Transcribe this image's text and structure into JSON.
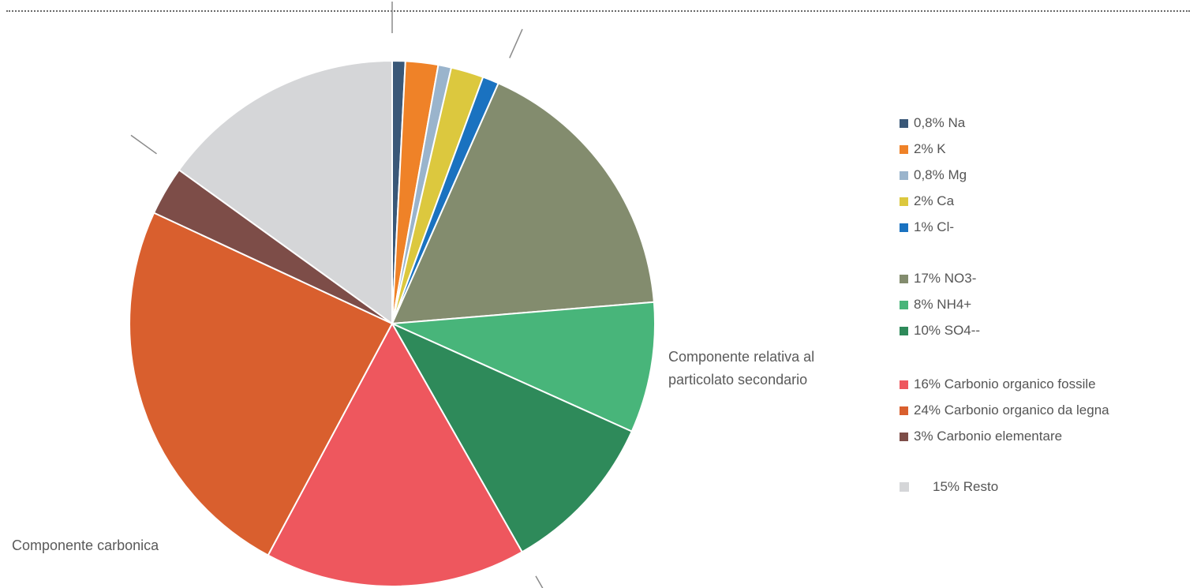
{
  "chart_data": {
    "type": "pie",
    "title": "",
    "unit": "%",
    "slices": [
      {
        "label": "Na",
        "value": 0.8,
        "color": "#3a5878",
        "legend": "0,8% Na"
      },
      {
        "label": "K",
        "value": 2,
        "color": "#ef8228",
        "legend": "2% K"
      },
      {
        "label": "Mg",
        "value": 0.8,
        "color": "#9ab4cc",
        "legend": "0,8% Mg"
      },
      {
        "label": "Ca",
        "value": 2,
        "color": "#dcc83e",
        "legend": "2% Ca"
      },
      {
        "label": "Cl-",
        "value": 1,
        "color": "#1a72c0",
        "legend": "1% Cl-"
      },
      {
        "label": "NO3-",
        "value": 17,
        "color": "#838c6e",
        "legend": "17% NO3-"
      },
      {
        "label": "NH4+",
        "value": 8,
        "color": "#48b57a",
        "legend": "8% NH4+"
      },
      {
        "label": "SO4--",
        "value": 10,
        "color": "#2e8a5a",
        "legend": "10% SO4--"
      },
      {
        "label": "Carbonio organico fossile",
        "value": 16,
        "color": "#ee575e",
        "legend": "16% Carbonio organico fossile"
      },
      {
        "label": "Carbonio organico da legna",
        "value": 24,
        "color": "#d95f2e",
        "legend": "24% Carbonio organico da legna"
      },
      {
        "label": "Carbonio elementare",
        "value": 3,
        "color": "#7d4d48",
        "legend": "3% Carbonio elementare"
      },
      {
        "label": "Resto",
        "value": 15,
        "color": "#d5d6d8",
        "legend": "15% Resto"
      }
    ],
    "groups": [
      {
        "label": "Componente relativa al particolato secondario",
        "members": [
          "NO3-",
          "NH4+",
          "SO4--"
        ]
      },
      {
        "label": "Componente carbonica",
        "members": [
          "Carbonio organico fossile",
          "Carbonio organico da legna",
          "Carbonio elementare"
        ]
      }
    ],
    "legend_position": "right"
  },
  "labels": {
    "secondary_line1": "Componente relativa al",
    "secondary_line2": "particolato secondario",
    "carbon": "Componente carbonica"
  }
}
